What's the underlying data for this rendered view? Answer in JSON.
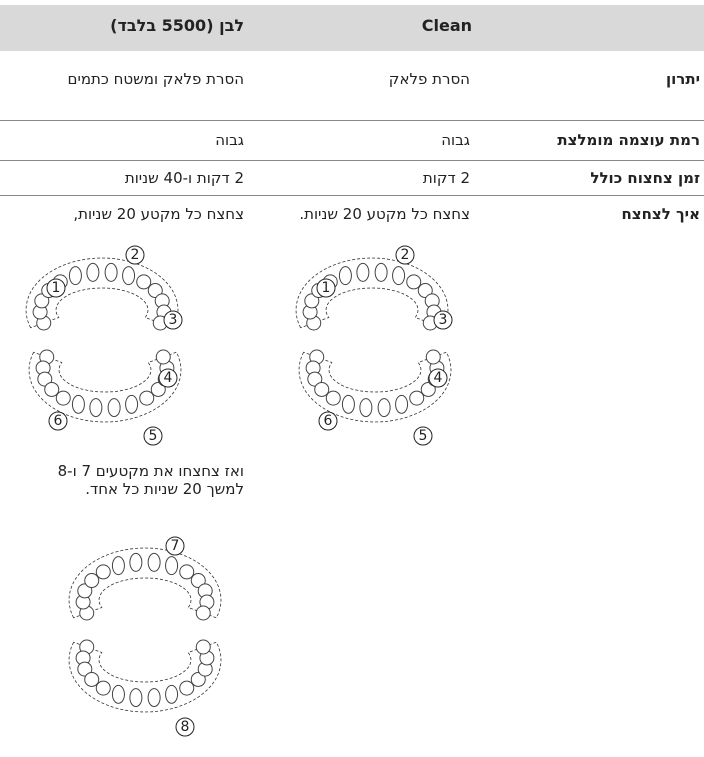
{
  "header": {
    "clean": "Clean",
    "white": "לבן (5500 בלבד)"
  },
  "rows": [
    {
      "label": "יתרון",
      "clean": "הסרת פלאק",
      "white": "הסרת פלאק ומשטח כתמים"
    },
    {
      "label": "רמת עוצמה מומלצת",
      "clean": "גבוה",
      "white": "גבוה"
    },
    {
      "label": "זמן צחצוח כולל",
      "clean": "2 דקות",
      "white": "2 דקות ו-40 שניות"
    },
    {
      "label": "איך לצחצח",
      "clean": "צחצח כל מקטע 20 שניות.",
      "white": "צחצח כל מקטע 20 שניות,",
      "white_note": "ואז צחצחו את מקטעים 7 ו-8 למשך 20 שניות כל אחד."
    }
  ],
  "diagrams": {
    "upper": [
      "1",
      "2",
      "3"
    ],
    "lower": [
      "4",
      "5",
      "6"
    ],
    "upper_extra": [
      "7"
    ],
    "lower_extra": [
      "8"
    ]
  }
}
